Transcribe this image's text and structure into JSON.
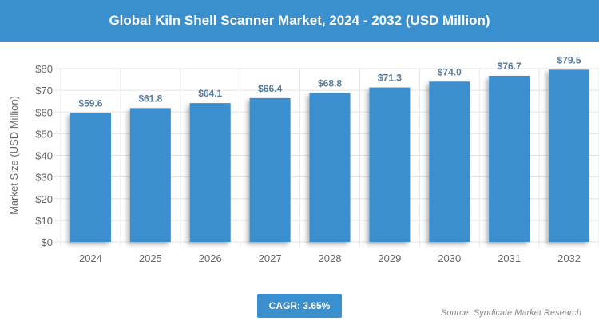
{
  "chart_data": {
    "type": "bar",
    "title": "Global Kiln Shell Scanner Market, 2024 - 2032 (USD Million)",
    "xlabel": "",
    "ylabel": "Market Size (USD Million)",
    "categories": [
      "2024",
      "2025",
      "2026",
      "2027",
      "2028",
      "2029",
      "2030",
      "2031",
      "2032"
    ],
    "values": [
      59.6,
      61.8,
      64.1,
      66.4,
      68.8,
      71.3,
      74.0,
      76.7,
      79.5
    ],
    "data_labels": [
      "$59.6",
      "$61.8",
      "$64.1",
      "$66.4",
      "$68.8",
      "$71.3",
      "$74.0",
      "$76.7",
      "$79.5"
    ],
    "ylim": [
      0,
      80
    ],
    "yticks": [
      "$0",
      "$10",
      "$20",
      "$30",
      "$40",
      "$50",
      "$60",
      "$70",
      "$80"
    ],
    "grid": true,
    "bar_color": "#3a8fcf",
    "label_color": "#5a7a9a"
  },
  "cagr": "CAGR: 3.65%",
  "source": "Source: Syndicate Market Research"
}
